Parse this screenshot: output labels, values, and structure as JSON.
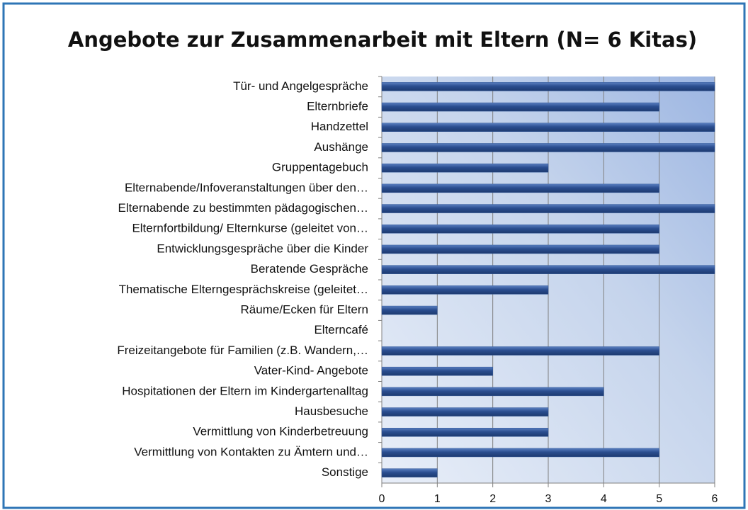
{
  "chart_data": {
    "type": "bar",
    "orientation": "horizontal",
    "title": "Angebote zur Zusammenarbeit mit Eltern (N= 6 Kitas)",
    "categories": [
      "Tür- und Angelgespräche",
      "Elternbriefe",
      "Handzettel",
      "Aushänge",
      "Gruppentagebuch",
      "Elternabende/Infoveranstaltungen über den…",
      "Elternabende zu bestimmten pädagogischen…",
      "Elternfortbildung/ Elternkurse (geleitet von…",
      "Entwicklungsgespräche über die Kinder",
      "Beratende Gespräche",
      "Thematische Elterngesprächskreise (geleitet…",
      "Räume/Ecken für Eltern",
      "Elterncafé",
      "Freizeitangebote für Familien (z.B. Wandern,…",
      "Vater-Kind- Angebote",
      "Hospitationen der Eltern im Kindergartenalltag",
      "Hausbesuche",
      "Vermittlung von Kinderbetreuung",
      "Vermittlung von Kontakten zu Ämtern und…",
      "Sonstige"
    ],
    "values": [
      6,
      5,
      6,
      6,
      3,
      5,
      6,
      5,
      5,
      6,
      3,
      1,
      0,
      5,
      2,
      4,
      3,
      3,
      5,
      1
    ],
    "color": "#2f5597",
    "xlim": [
      0,
      6
    ],
    "xticks": [
      0,
      1,
      2,
      3,
      4,
      5,
      6
    ],
    "grid": true
  }
}
